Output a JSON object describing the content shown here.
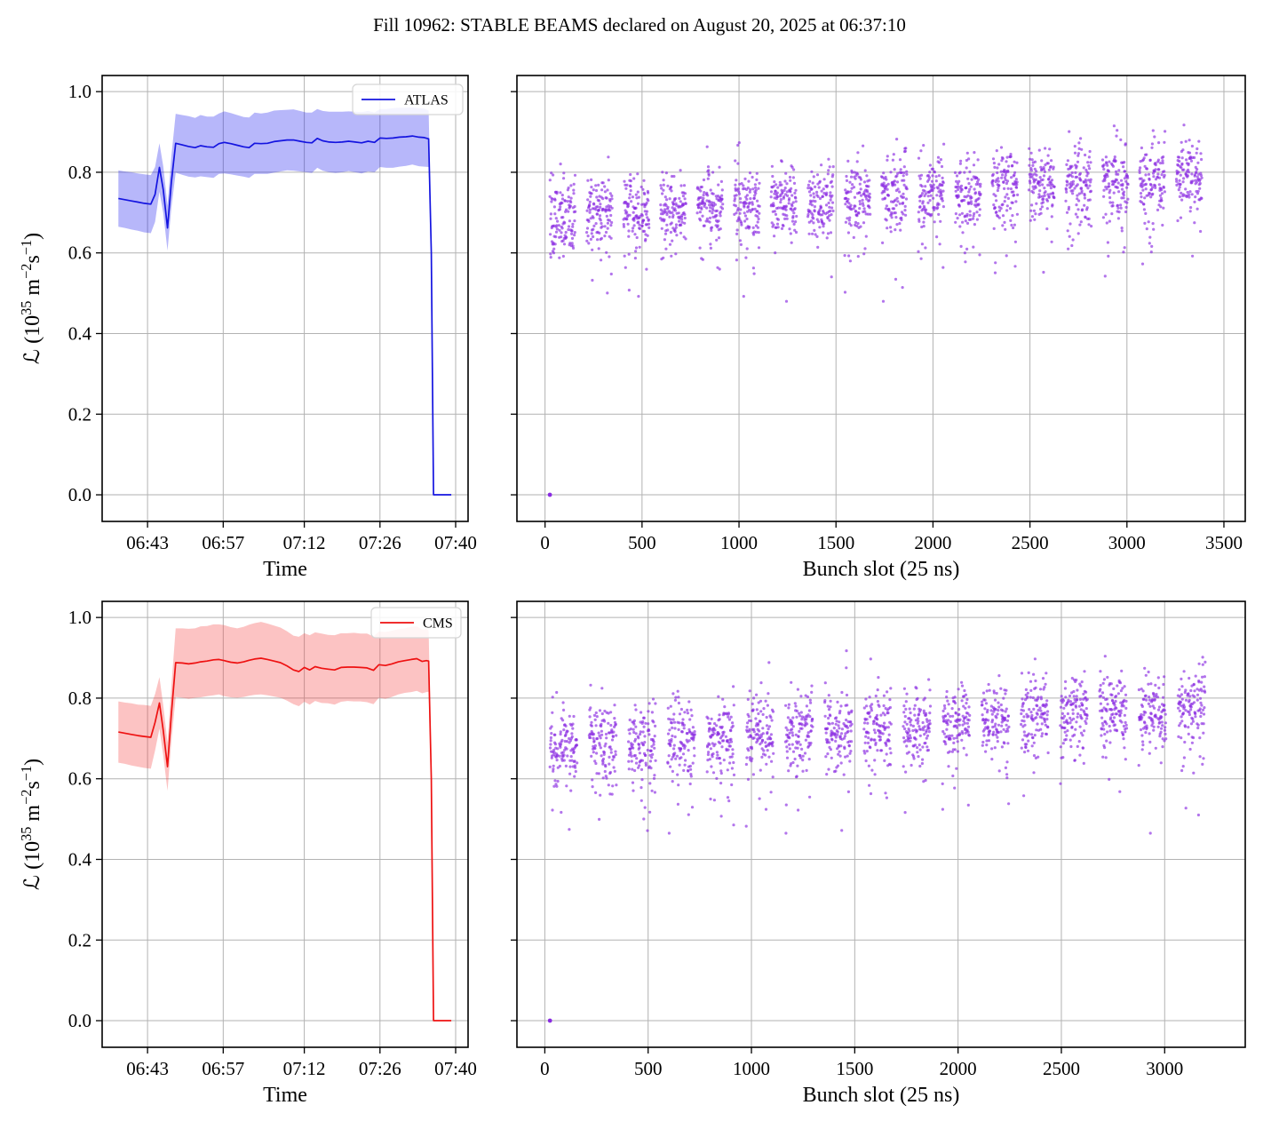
{
  "title": "Fill 10962: STABLE BEAMS declared on August 20, 2025 at 06:37:10",
  "colors": {
    "atlas_line": "#1414e0",
    "atlas_band": "#2020ee",
    "cms_line": "#ee1111",
    "cms_band": "#f54545",
    "scatter": "#8a2be2",
    "grid": "#b2b2b2",
    "spine": "#000000",
    "legend_border": "#d5d5d5"
  },
  "axes": {
    "ylabel": "ℒ (10^{35} m^{−2}s^{−1})",
    "y_ticks": {
      "values": [
        0.0,
        0.2,
        0.4,
        0.6,
        0.8,
        1.0
      ],
      "labels": [
        "0.0",
        "0.2",
        "0.4",
        "0.6",
        "0.8",
        "1.0"
      ],
      "domain": [
        -0.066,
        1.04
      ]
    },
    "time_axis": {
      "label": "Time",
      "tick_values": [
        43,
        57,
        72,
        86,
        100
      ],
      "tick_labels": [
        "06:43",
        "06:57",
        "07:12",
        "07:26",
        "07:40"
      ],
      "domain": [
        34.6,
        102.3
      ],
      "unit": "minutes after 06:00"
    },
    "bunch_axis_top": {
      "label": "Bunch slot (25 ns)",
      "tick_values": [
        0,
        500,
        1000,
        1500,
        2000,
        2500,
        3000,
        3500
      ],
      "tick_labels": [
        "0",
        "500",
        "1000",
        "1500",
        "2000",
        "2500",
        "3000",
        "3500"
      ],
      "domain": [
        -145,
        3610
      ]
    },
    "bunch_axis_bottom": {
      "label": "Bunch slot (25 ns)",
      "tick_values": [
        0,
        500,
        1000,
        1500,
        2000,
        2500,
        3000
      ],
      "tick_labels": [
        "0",
        "500",
        "1000",
        "1500",
        "2000",
        "2500",
        "3000"
      ],
      "domain": [
        -135,
        3390
      ]
    },
    "grid": true
  },
  "chart_data": [
    {
      "id": "atlas_time",
      "type": "line",
      "legend": "ATLAS",
      "x_unit": "minutes after 06:00 (clock time)",
      "ylabel": "L (1e35 m-2 s-1)",
      "note": "points are [time, luminosity, band_halfwidth]; shaded band = value ± halfwidth",
      "points": [
        [
          37.6,
          0.735,
          0.07
        ],
        [
          38.8,
          0.732,
          0.07
        ],
        [
          40.0,
          0.729,
          0.071
        ],
        [
          41.2,
          0.726,
          0.071
        ],
        [
          42.4,
          0.723,
          0.072
        ],
        [
          43.6,
          0.721,
          0.072
        ],
        [
          44.4,
          0.745,
          0.068
        ],
        [
          45.2,
          0.812,
          0.06
        ],
        [
          45.9,
          0.757,
          0.058
        ],
        [
          46.7,
          0.662,
          0.056
        ],
        [
          47.4,
          0.775,
          0.064
        ],
        [
          48.2,
          0.872,
          0.073
        ],
        [
          49.4,
          0.868,
          0.074
        ],
        [
          50.6,
          0.864,
          0.075
        ],
        [
          51.8,
          0.861,
          0.074
        ],
        [
          52.8,
          0.866,
          0.076
        ],
        [
          54.0,
          0.863,
          0.075
        ],
        [
          55.2,
          0.862,
          0.076
        ],
        [
          56.2,
          0.871,
          0.075
        ],
        [
          57.2,
          0.874,
          0.077
        ],
        [
          58.4,
          0.871,
          0.076
        ],
        [
          59.6,
          0.867,
          0.075
        ],
        [
          60.8,
          0.863,
          0.074
        ],
        [
          61.8,
          0.861,
          0.075
        ],
        [
          62.8,
          0.872,
          0.076
        ],
        [
          64.0,
          0.871,
          0.075
        ],
        [
          65.2,
          0.872,
          0.076
        ],
        [
          66.4,
          0.876,
          0.077
        ],
        [
          67.6,
          0.878,
          0.076
        ],
        [
          68.8,
          0.88,
          0.075
        ],
        [
          70.0,
          0.88,
          0.076
        ],
        [
          71.2,
          0.877,
          0.075
        ],
        [
          72.4,
          0.874,
          0.074
        ],
        [
          73.4,
          0.873,
          0.075
        ],
        [
          74.4,
          0.884,
          0.073
        ],
        [
          75.4,
          0.878,
          0.074
        ],
        [
          76.6,
          0.875,
          0.075
        ],
        [
          77.8,
          0.874,
          0.076
        ],
        [
          79.0,
          0.875,
          0.075
        ],
        [
          80.2,
          0.877,
          0.074
        ],
        [
          81.4,
          0.875,
          0.075
        ],
        [
          82.6,
          0.873,
          0.076
        ],
        [
          83.8,
          0.877,
          0.075
        ],
        [
          85.0,
          0.874,
          0.074
        ],
        [
          86.0,
          0.885,
          0.072
        ],
        [
          87.2,
          0.884,
          0.073
        ],
        [
          88.4,
          0.885,
          0.074
        ],
        [
          89.6,
          0.887,
          0.073
        ],
        [
          90.8,
          0.888,
          0.072
        ],
        [
          92.0,
          0.89,
          0.071
        ],
        [
          93.2,
          0.887,
          0.072
        ],
        [
          94.2,
          0.886,
          0.072
        ],
        [
          95.0,
          0.883,
          0.07
        ],
        [
          95.5,
          0.6,
          0.03
        ],
        [
          95.9,
          0.0,
          0.0
        ],
        [
          99.2,
          0.0,
          0.0
        ]
      ]
    },
    {
      "id": "atlas_bunch",
      "type": "scatter",
      "x_label": "Bunch slot (25 ns)",
      "marker_radius_px": 1.6,
      "marker_opacity": 0.65,
      "summary": "per-bunch luminosity, trains of bunches; mean rises ~0.69 at slot 0 to ~0.79 at slot 3400; spread ±0.09; ~5% low outliers down to ~0.50; single point at origin",
      "generator": {
        "seed": 20250820,
        "start": 25,
        "groups": 18,
        "group_period": 190,
        "trains_per_group": 3,
        "train_len": 40,
        "train_gap": 6,
        "y0": 0.688,
        "slope": 3.05e-05,
        "sigma": 0.045,
        "low_frac": 0.05,
        "low_lo": 0.05,
        "low_hi": 0.2,
        "high_frac": 0.012,
        "high_lo": 0.04,
        "high_hi": 0.11,
        "clamp_lo": 0.48,
        "clamp_hi": 0.965
      },
      "special_points": [
        [
          25,
          0.0
        ]
      ]
    },
    {
      "id": "cms_time",
      "type": "line",
      "legend": "CMS",
      "x_unit": "minutes after 06:00 (clock time)",
      "ylabel": "L (1e35 m-2 s-1)",
      "note": "points are [time, luminosity, band_halfwidth]; shaded band = value ± halfwidth",
      "points": [
        [
          37.6,
          0.716,
          0.076
        ],
        [
          38.8,
          0.713,
          0.076
        ],
        [
          40.0,
          0.71,
          0.077
        ],
        [
          41.2,
          0.707,
          0.077
        ],
        [
          42.4,
          0.705,
          0.078
        ],
        [
          43.6,
          0.703,
          0.078
        ],
        [
          44.4,
          0.74,
          0.07
        ],
        [
          45.2,
          0.788,
          0.064
        ],
        [
          45.9,
          0.72,
          0.062
        ],
        [
          46.7,
          0.63,
          0.06
        ],
        [
          47.4,
          0.76,
          0.068
        ],
        [
          48.2,
          0.888,
          0.085
        ],
        [
          49.4,
          0.887,
          0.086
        ],
        [
          50.6,
          0.885,
          0.087
        ],
        [
          51.8,
          0.887,
          0.086
        ],
        [
          52.8,
          0.89,
          0.088
        ],
        [
          54.0,
          0.892,
          0.087
        ],
        [
          55.2,
          0.895,
          0.088
        ],
        [
          56.2,
          0.896,
          0.087
        ],
        [
          57.2,
          0.893,
          0.088
        ],
        [
          58.4,
          0.889,
          0.087
        ],
        [
          59.6,
          0.887,
          0.086
        ],
        [
          60.8,
          0.89,
          0.087
        ],
        [
          61.8,
          0.894,
          0.088
        ],
        [
          62.8,
          0.897,
          0.089
        ],
        [
          64.0,
          0.899,
          0.09
        ],
        [
          65.2,
          0.896,
          0.089
        ],
        [
          66.4,
          0.892,
          0.088
        ],
        [
          67.6,
          0.888,
          0.087
        ],
        [
          68.8,
          0.88,
          0.086
        ],
        [
          70.0,
          0.87,
          0.085
        ],
        [
          71.0,
          0.866,
          0.086
        ],
        [
          72.0,
          0.876,
          0.085
        ],
        [
          73.0,
          0.87,
          0.086
        ],
        [
          74.0,
          0.878,
          0.085
        ],
        [
          75.2,
          0.874,
          0.086
        ],
        [
          76.4,
          0.872,
          0.085
        ],
        [
          77.6,
          0.87,
          0.086
        ],
        [
          78.8,
          0.876,
          0.085
        ],
        [
          80.0,
          0.877,
          0.084
        ],
        [
          81.2,
          0.877,
          0.085
        ],
        [
          82.4,
          0.876,
          0.084
        ],
        [
          83.6,
          0.875,
          0.085
        ],
        [
          84.8,
          0.869,
          0.084
        ],
        [
          85.8,
          0.883,
          0.082
        ],
        [
          87.0,
          0.881,
          0.083
        ],
        [
          88.2,
          0.885,
          0.082
        ],
        [
          89.4,
          0.89,
          0.081
        ],
        [
          90.6,
          0.893,
          0.08
        ],
        [
          91.8,
          0.896,
          0.081
        ],
        [
          92.8,
          0.898,
          0.08
        ],
        [
          93.8,
          0.891,
          0.079
        ],
        [
          94.6,
          0.893,
          0.078
        ],
        [
          95.0,
          0.892,
          0.076
        ],
        [
          95.5,
          0.6,
          0.03
        ],
        [
          95.9,
          0.0,
          0.0
        ],
        [
          99.2,
          0.0,
          0.0
        ]
      ]
    },
    {
      "id": "cms_bunch",
      "type": "scatter",
      "x_label": "Bunch slot (25 ns)",
      "marker_radius_px": 1.6,
      "marker_opacity": 0.65,
      "summary": "per-bunch luminosity; mean rises ~0.675 at slot 0 to ~0.78 at slot 3200; spread ±0.09; ~5% low outliers down to ~0.47; single point at origin",
      "generator": {
        "seed": 10962,
        "start": 25,
        "groups": 17,
        "group_period": 190,
        "trains_per_group": 3,
        "train_len": 40,
        "train_gap": 6,
        "y0": 0.675,
        "slope": 3.2e-05,
        "sigma": 0.047,
        "low_frac": 0.055,
        "low_lo": 0.05,
        "low_hi": 0.2,
        "high_frac": 0.012,
        "high_lo": 0.04,
        "high_hi": 0.11,
        "clamp_lo": 0.465,
        "clamp_hi": 0.965
      },
      "special_points": [
        [
          25,
          0.0
        ]
      ]
    }
  ]
}
